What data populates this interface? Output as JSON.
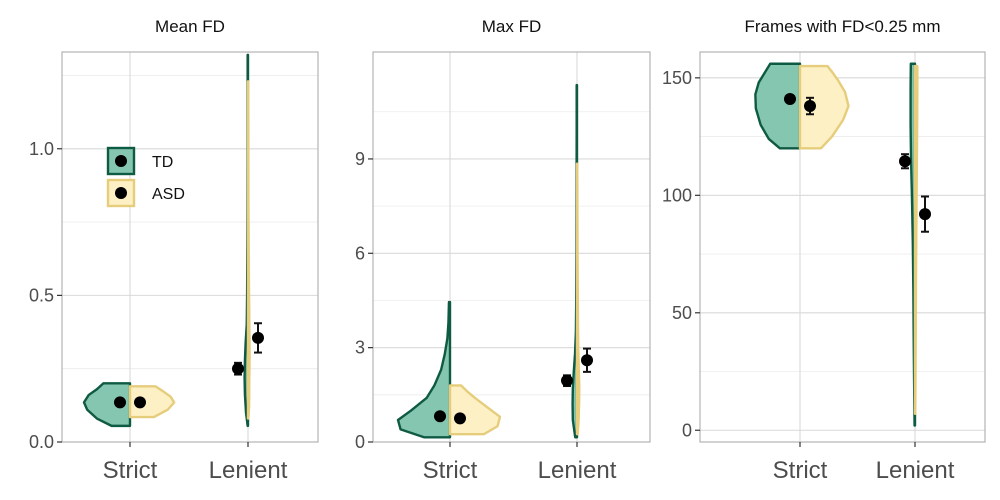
{
  "colors": {
    "td_fill": "#85c6b0",
    "td_stroke": "#0f5a43",
    "asd_fill": "#fcf0c4",
    "asd_stroke": "#e6cd7c",
    "point": "#000000"
  },
  "legend": {
    "entries": [
      "TD",
      "ASD"
    ],
    "position": "top-left inside first panel"
  },
  "chart_data": [
    {
      "type": "violin",
      "title": "Mean FD",
      "categories": [
        "Strict",
        "Lenient"
      ],
      "ylim": [
        0,
        1.33
      ],
      "yticks": [
        0,
        0.5,
        1
      ],
      "ytick_labels": [
        "0.0",
        "0.5",
        "1.0"
      ],
      "series": [
        {
          "name": "TD",
          "violins": [
            {
              "min": 0.055,
              "max": 0.2,
              "profile": [
                [
                  0.055,
                  0.4
                ],
                [
                  0.08,
                  0.72
                ],
                [
                  0.11,
                  0.93
                ],
                [
                  0.135,
                  1.0
                ],
                [
                  0.16,
                  0.9
                ],
                [
                  0.18,
                  0.72
                ],
                [
                  0.2,
                  0.58
                ]
              ]
            },
            {
              "min": 0.055,
              "max": 1.32,
              "profile": [
                [
                  0.055,
                  0.02
                ],
                [
                  0.1,
                  0.11
                ],
                [
                  0.16,
                  0.17
                ],
                [
                  0.22,
                  0.19
                ],
                [
                  0.28,
                  0.17
                ],
                [
                  0.34,
                  0.13
                ],
                [
                  0.4,
                  0.07
                ],
                [
                  0.5,
                  0.05
                ],
                [
                  0.6,
                  0.04
                ],
                [
                  0.7,
                  0.03
                ],
                [
                  0.8,
                  0.025
                ],
                [
                  1.0,
                  0.02
                ],
                [
                  1.2,
                  0.02
                ],
                [
                  1.32,
                  0.02
                ]
              ]
            }
          ],
          "mean": [
            0.135,
            0.25
          ],
          "err": [
            0.006,
            0.02
          ]
        },
        {
          "name": "ASD",
          "violins": [
            {
              "min": 0.085,
              "max": 0.19,
              "profile": [
                [
                  0.085,
                  0.52
                ],
                [
                  0.11,
                  0.82
                ],
                [
                  0.135,
                  0.96
                ],
                [
                  0.155,
                  0.88
                ],
                [
                  0.175,
                  0.7
                ],
                [
                  0.19,
                  0.55
                ]
              ]
            },
            {
              "min": 0.08,
              "max": 1.23,
              "profile": [
                [
                  0.08,
                  0.02
                ],
                [
                  0.12,
                  0.06
                ],
                [
                  0.2,
                  0.07
                ],
                [
                  0.3,
                  0.09
                ],
                [
                  0.38,
                  0.08
                ],
                [
                  0.5,
                  0.06
                ],
                [
                  0.6,
                  0.045
                ],
                [
                  0.7,
                  0.035
                ],
                [
                  0.8,
                  0.025
                ],
                [
                  1.0,
                  0.02
                ],
                [
                  1.23,
                  0.015
                ]
              ]
            }
          ],
          "mean": [
            0.135,
            0.355
          ],
          "err": [
            0.006,
            0.05
          ]
        }
      ]
    },
    {
      "type": "violin",
      "title": "Max FD",
      "categories": [
        "Strict",
        "Lenient"
      ],
      "ylim": [
        0,
        12.4
      ],
      "yticks": [
        0,
        3,
        6,
        9
      ],
      "ytick_labels": [
        "0",
        "3",
        "6",
        "9"
      ],
      "series": [
        {
          "name": "TD",
          "violins": [
            {
              "min": 0.15,
              "max": 4.45,
              "profile": [
                [
                  0.15,
                  0.5
                ],
                [
                  0.4,
                  0.95
                ],
                [
                  0.7,
                  1.0
                ],
                [
                  1.0,
                  0.75
                ],
                [
                  1.4,
                  0.45
                ],
                [
                  1.8,
                  0.3
                ],
                [
                  2.3,
                  0.17
                ],
                [
                  2.8,
                  0.1
                ],
                [
                  3.3,
                  0.05
                ],
                [
                  3.8,
                  0.03
                ],
                [
                  4.45,
                  0.02
                ]
              ]
            },
            {
              "min": 0.15,
              "max": 11.35,
              "profile": [
                [
                  0.15,
                  0.08
                ],
                [
                  0.7,
                  0.19
                ],
                [
                  1.2,
                  0.2
                ],
                [
                  1.7,
                  0.19
                ],
                [
                  2.2,
                  0.15
                ],
                [
                  2.8,
                  0.09
                ],
                [
                  3.5,
                  0.05
                ],
                [
                  4.5,
                  0.035
                ],
                [
                  6,
                  0.025
                ],
                [
                  8,
                  0.02
                ],
                [
                  10,
                  0.015
                ],
                [
                  11.35,
                  0.015
                ]
              ]
            }
          ],
          "mean": [
            0.82,
            1.95
          ],
          "err": [
            0.06,
            0.17
          ]
        },
        {
          "name": "ASD",
          "violins": [
            {
              "min": 0.25,
              "max": 1.8,
              "profile": [
                [
                  0.25,
                  0.68
                ],
                [
                  0.5,
                  0.95
                ],
                [
                  0.8,
                  1.0
                ],
                [
                  1.1,
                  0.75
                ],
                [
                  1.4,
                  0.5
                ],
                [
                  1.6,
                  0.35
                ],
                [
                  1.8,
                  0.22
                ]
              ]
            },
            {
              "min": 0.25,
              "max": 8.85,
              "profile": [
                [
                  0.25,
                  0.04
                ],
                [
                  0.7,
                  0.09
                ],
                [
                  1.3,
                  0.12
                ],
                [
                  1.8,
                  0.125
                ],
                [
                  2.3,
                  0.1
                ],
                [
                  3,
                  0.07
                ],
                [
                  4,
                  0.05
                ],
                [
                  5,
                  0.04
                ],
                [
                  6,
                  0.03
                ],
                [
                  7,
                  0.025
                ],
                [
                  8,
                  0.02
                ],
                [
                  8.85,
                  0.015
                ]
              ]
            }
          ],
          "mean": [
            0.75,
            2.6
          ],
          "err": [
            0.06,
            0.37
          ]
        }
      ]
    },
    {
      "type": "violin",
      "title": "Frames with FD<0.25 mm",
      "categories": [
        "Strict",
        "Lenient"
      ],
      "ylim": [
        -5,
        161
      ],
      "yticks": [
        0,
        50,
        100,
        150
      ],
      "ytick_labels": [
        "0",
        "50",
        "100",
        "150"
      ],
      "series": [
        {
          "name": "TD",
          "violins": [
            {
              "min": 120,
              "max": 156,
              "profile": [
                [
                  120,
                  0.42
                ],
                [
                  124,
                  0.65
                ],
                [
                  130,
                  0.82
                ],
                [
                  137,
                  0.92
                ],
                [
                  143,
                  0.93
                ],
                [
                  148,
                  0.86
                ],
                [
                  152,
                  0.74
                ],
                [
                  156,
                  0.62
                ]
              ]
            },
            {
              "min": 2,
              "max": 156,
              "profile": [
                [
                  2,
                  0.02
                ],
                [
                  20,
                  0.04
                ],
                [
                  40,
                  0.06
                ],
                [
                  60,
                  0.075
                ],
                [
                  80,
                  0.1
                ],
                [
                  100,
                  0.14
                ],
                [
                  115,
                  0.18
                ],
                [
                  130,
                  0.2
                ],
                [
                  145,
                  0.2
                ],
                [
                  156,
                  0.19
                ]
              ]
            }
          ],
          "mean": [
            141,
            114.5
          ],
          "err": [
            1.5,
            3
          ]
        },
        {
          "name": "ASD",
          "violins": [
            {
              "min": 120,
              "max": 155,
              "profile": [
                [
                  120,
                  0.42
                ],
                [
                  125,
                  0.64
                ],
                [
                  132,
                  0.86
                ],
                [
                  138,
                  0.97
                ],
                [
                  144,
                  0.9
                ],
                [
                  149,
                  0.76
                ],
                [
                  152,
                  0.66
                ],
                [
                  155,
                  0.55
                ]
              ]
            },
            {
              "min": 7,
              "max": 155,
              "profile": [
                [
                  7,
                  0.015
                ],
                [
                  25,
                  0.03
                ],
                [
                  50,
                  0.045
                ],
                [
                  70,
                  0.06
                ],
                [
                  90,
                  0.08
                ],
                [
                  110,
                  0.1
                ],
                [
                  130,
                  0.12
                ],
                [
                  145,
                  0.13
                ],
                [
                  155,
                  0.13
                ]
              ]
            }
          ],
          "mean": [
            138,
            92
          ],
          "err": [
            3.5,
            7.5
          ]
        }
      ]
    }
  ]
}
